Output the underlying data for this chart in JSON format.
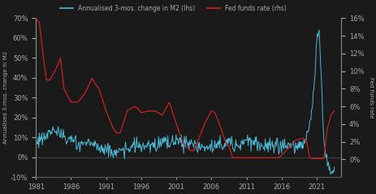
{
  "title": "",
  "legend_blue": "Annualised 3-mos. change in M2 (lhs)",
  "legend_red": "Fed funds rate (rhs)",
  "left_ylabel": "Annualised 3-mos. change in M2",
  "right_ylabel": "Fed funds rate",
  "left_ylim": [
    -0.1,
    0.7
  ],
  "right_ylim": [
    -0.02,
    0.16
  ],
  "left_yticks": [
    -0.1,
    0.0,
    0.1,
    0.2,
    0.3,
    0.4,
    0.5,
    0.6,
    0.7
  ],
  "right_yticks": [
    0.0,
    0.02,
    0.04,
    0.06,
    0.08,
    0.1,
    0.12,
    0.14,
    0.16
  ],
  "xlim_start": 1981.0,
  "xlim_end": 2024.5,
  "xticks": [
    1981,
    1986,
    1991,
    1996,
    2001,
    2006,
    2011,
    2016,
    2021
  ],
  "background_color": "#1a1a1a",
  "line_color_blue": "#4db8d4",
  "line_color_red": "#cc2222",
  "axis_color": "#888888",
  "text_color": "#aaaaaa",
  "zero_line_color": "#555555"
}
